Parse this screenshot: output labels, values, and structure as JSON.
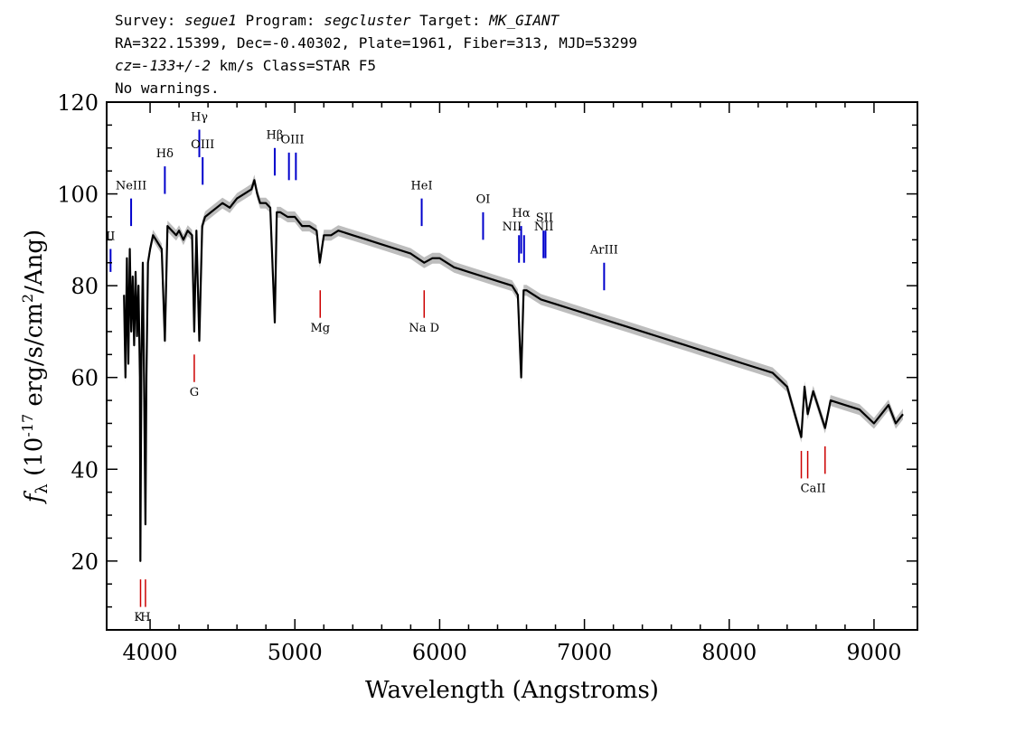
{
  "header": {
    "line1": {
      "survey_label": "Survey: ",
      "survey": "segue1",
      "program_label": " Program: ",
      "program": "segcluster",
      "target_label": " Target: ",
      "target": "MK_GIANT"
    },
    "line2": "RA=322.15399, Dec=-0.40302, Plate=1961, Fiber=313, MJD=53299",
    "line3": {
      "cz": "cz",
      "eq": "=",
      "vel": "-133+/-2",
      "rest": " km/s Class=STAR F5"
    },
    "line4": "No warnings."
  },
  "chart_data": {
    "type": "line",
    "xlabel": "Wavelength (Angstroms)",
    "ylabel": {
      "f": "f",
      "lambda": "λ",
      "main": " (10",
      "exp": "-17",
      "unit": " erg/s/cm",
      "sq": "2",
      "tail": "/Ang)"
    },
    "xlim": [
      3700,
      9300
    ],
    "ylim": [
      5,
      120
    ],
    "xticks": [
      4000,
      5000,
      6000,
      7000,
      8000,
      9000
    ],
    "yticks": [
      20,
      40,
      60,
      80,
      100,
      120
    ],
    "colors": {
      "spectrum": "#000000",
      "error_band": "#bdbdbd",
      "emission": "#0000cc",
      "absorption": "#cc0000"
    },
    "series": [
      {
        "x": [
          3820,
          3830,
          3840,
          3850,
          3860,
          3870,
          3880,
          3890,
          3900,
          3910,
          3920,
          3930,
          3933,
          3940,
          3950,
          3960,
          3968,
          3975,
          3985,
          4000,
          4020,
          4040,
          4060,
          4080,
          4102,
          4120,
          4150,
          4180,
          4200,
          4230,
          4260,
          4290,
          4305,
          4320,
          4340,
          4360,
          4380,
          4420,
          4460,
          4500,
          4550,
          4600,
          4650,
          4700,
          4720,
          4740,
          4760,
          4800,
          4830,
          4861,
          4875,
          4900,
          4950,
          5000,
          5050,
          5100,
          5150,
          5172,
          5200,
          5250,
          5300,
          5400,
          5500,
          5600,
          5700,
          5800,
          5893,
          5950,
          6000,
          6100,
          6200,
          6300,
          6400,
          6500,
          6540,
          6563,
          6580,
          6600,
          6700,
          6800,
          6900,
          7000,
          7100,
          7200,
          7300,
          7400,
          7500,
          7600,
          7700,
          7800,
          7900,
          8000,
          8100,
          8200,
          8300,
          8400,
          8498,
          8520,
          8542,
          8580,
          8662,
          8700,
          8800,
          8900,
          9000,
          9050,
          9100,
          9150,
          9200
        ],
        "values": [
          78,
          60,
          86,
          63,
          88,
          70,
          82,
          67,
          83,
          69,
          80,
          60,
          20,
          62,
          85,
          55,
          28,
          60,
          85,
          88,
          91,
          90,
          89,
          88,
          68,
          93,
          92,
          91,
          92,
          90,
          92,
          91,
          70,
          92,
          68,
          93,
          95,
          96,
          97,
          98,
          97,
          99,
          100,
          101,
          103,
          100,
          98,
          98,
          97,
          72,
          96,
          96,
          95,
          95,
          93,
          93,
          92,
          85,
          91,
          91,
          92,
          91,
          90,
          89,
          88,
          87,
          85,
          86,
          86,
          84,
          83,
          82,
          81,
          80,
          78,
          60,
          79,
          79,
          77,
          76,
          75,
          74,
          73,
          72,
          71,
          70,
          69,
          68,
          67,
          66,
          65,
          64,
          63,
          62,
          61,
          58,
          47,
          58,
          52,
          57,
          49,
          55,
          54,
          53,
          50,
          52,
          54,
          50,
          52
        ]
      }
    ],
    "emission_lines": [
      {
        "label": "OII",
        "x": 3727,
        "y_top": 88,
        "y_bot": 83
      },
      {
        "label": "NeIII",
        "x": 3869,
        "y_top": 99,
        "y_bot": 93
      },
      {
        "label": "Hδ",
        "x": 4102,
        "y_top": 106,
        "y_bot": 100
      },
      {
        "label": "Hγ",
        "x": 4340,
        "y_top": 114,
        "y_bot": 108
      },
      {
        "label": "OIII",
        "x": 4363,
        "y_top": 108,
        "y_bot": 102
      },
      {
        "label": "Hβ",
        "x": 4861,
        "y_top": 110,
        "y_bot": 104
      },
      {
        "label": "OIII",
        "x": 4959,
        "y_top": 109,
        "y_bot": 103
      },
      {
        "label": "OIII",
        "x": 5007,
        "y_top": 109,
        "y_bot": 103
      },
      {
        "label": "HeI",
        "x": 5876,
        "y_top": 99,
        "y_bot": 93
      },
      {
        "label": "OI",
        "x": 6300,
        "y_top": 96,
        "y_bot": 90
      },
      {
        "label": "NII",
        "x": 6548,
        "y_top": 91,
        "y_bot": 85
      },
      {
        "label": "Hα",
        "x": 6563,
        "y_top": 93,
        "y_bot": 87
      },
      {
        "label": "NII",
        "x": 6583,
        "y_top": 91,
        "y_bot": 85
      },
      {
        "label": "SII",
        "x": 6717,
        "y_top": 92,
        "y_bot": 86
      },
      {
        "label": "SII",
        "x": 6731,
        "y_top": 92,
        "y_bot": 86
      },
      {
        "label": "ArIII",
        "x": 7136,
        "y_top": 85,
        "y_bot": 79
      }
    ],
    "emission_labels": [
      {
        "text": "II",
        "x": 3727,
        "y": 90
      },
      {
        "text": "NeIII",
        "x": 3869,
        "y": 101
      },
      {
        "text": "Hδ",
        "x": 4102,
        "y": 108
      },
      {
        "text": "Hγ",
        "x": 4340,
        "y": 116
      },
      {
        "text": "OIII",
        "x": 4363,
        "y": 110
      },
      {
        "text": "Hβ",
        "x": 4861,
        "y": 112
      },
      {
        "text": "OIII",
        "x": 4983,
        "y": 111
      },
      {
        "text": "HeI",
        "x": 5876,
        "y": 101
      },
      {
        "text": "OI",
        "x": 6300,
        "y": 98
      },
      {
        "text": "NII",
        "x": 6500,
        "y": 92
      },
      {
        "text": "Hα",
        "x": 6563,
        "y": 95
      },
      {
        "text": "NII",
        "x": 6720,
        "y": 92
      },
      {
        "text": "SII",
        "x": 6724,
        "y": 94
      },
      {
        "text": "ArIII",
        "x": 7136,
        "y": 87
      }
    ],
    "absorption_lines": [
      {
        "x": 3934,
        "y_top": 16,
        "y_bot": 10
      },
      {
        "x": 3968,
        "y_top": 16,
        "y_bot": 10
      },
      {
        "x": 4305,
        "y_top": 65,
        "y_bot": 59
      },
      {
        "x": 5175,
        "y_top": 79,
        "y_bot": 73
      },
      {
        "x": 5893,
        "y_top": 79,
        "y_bot": 73
      },
      {
        "x": 8498,
        "y_top": 44,
        "y_bot": 38
      },
      {
        "x": 8542,
        "y_top": 44,
        "y_bot": 38
      },
      {
        "x": 8662,
        "y_top": 45,
        "y_bot": 39
      }
    ],
    "absorption_labels": [
      {
        "text": "K",
        "x": 3920,
        "y": 7
      },
      {
        "text": "H",
        "x": 3968,
        "y": 7
      },
      {
        "text": "G",
        "x": 4305,
        "y": 56
      },
      {
        "text": "Mg",
        "x": 5175,
        "y": 70
      },
      {
        "text": "Na D",
        "x": 5893,
        "y": 70
      },
      {
        "text": "CaII",
        "x": 8580,
        "y": 35
      }
    ]
  }
}
